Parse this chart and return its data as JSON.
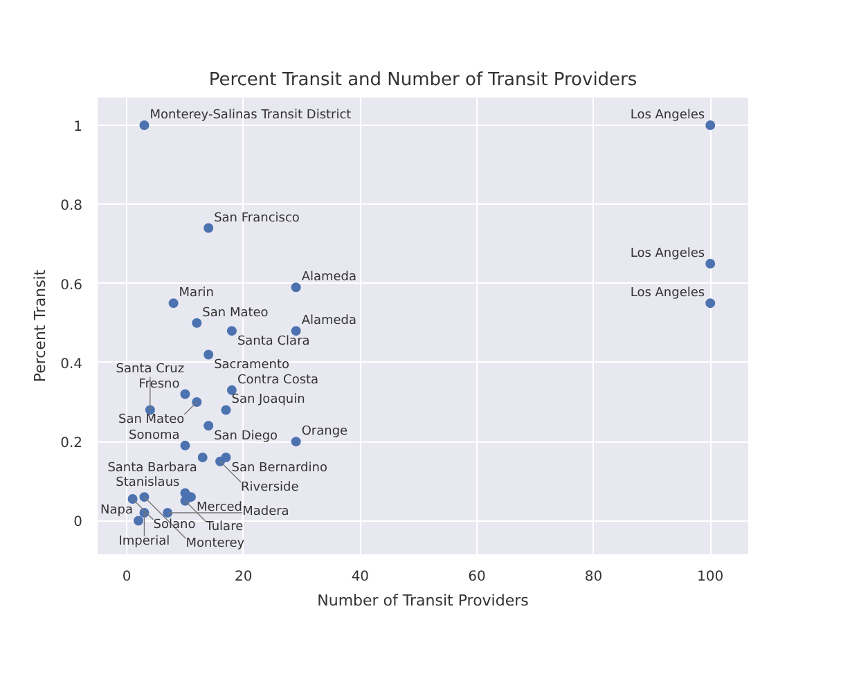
{
  "chart_data": {
    "type": "scatter",
    "title": "Percent Transit and Number of Transit Providers",
    "xlabel": "Number of Transit Providers",
    "ylabel": "Percent Transit",
    "x": [
      3,
      100,
      14,
      29,
      100,
      8,
      100,
      12,
      18,
      29,
      14,
      10,
      18,
      12,
      4,
      17,
      14,
      10,
      13,
      17,
      16,
      29,
      10,
      1,
      3,
      10,
      11,
      3,
      7,
      2
    ],
    "series": [
      {
        "color": "#4c72b0",
        "values": [
          1.0,
          1.0,
          0.74,
          0.59,
          0.65,
          0.55,
          0.55,
          0.5,
          0.48,
          0.48,
          0.42,
          0.32,
          0.33,
          0.3,
          0.28,
          0.28,
          0.24,
          0.19,
          0.16,
          0.16,
          0.15,
          0.2,
          0.07,
          0.055,
          0.06,
          0.05,
          0.06,
          0.02,
          0.02,
          0.0
        ]
      }
    ],
    "annotations": [
      {
        "text": "Monterey-Salinas Transit District",
        "x": 3,
        "y": 1.0
      },
      {
        "text": "Los Angeles",
        "x": 100,
        "y": 1.0
      },
      {
        "text": "San Francisco",
        "x": 14,
        "y": 0.74
      },
      {
        "text": "Alameda",
        "x": 29,
        "y": 0.59
      },
      {
        "text": "Los Angeles",
        "x": 100,
        "y": 0.65
      },
      {
        "text": "Marin",
        "x": 8,
        "y": 0.55
      },
      {
        "text": "Los Angeles",
        "x": 100,
        "y": 0.55
      },
      {
        "text": "San Mateo",
        "x": 12,
        "y": 0.5
      },
      {
        "text": "Santa Clara",
        "x": 18,
        "y": 0.48
      },
      {
        "text": "Alameda",
        "x": 29,
        "y": 0.48
      },
      {
        "text": "Sacramento",
        "x": 14,
        "y": 0.42
      },
      {
        "text": "Fresno",
        "x": 10,
        "y": 0.32
      },
      {
        "text": "Contra Costa",
        "x": 18,
        "y": 0.33
      },
      {
        "text": "San Mateo",
        "x": 12,
        "y": 0.3
      },
      {
        "text": "Santa Cruz",
        "x": 4,
        "y": 0.28
      },
      {
        "text": "San Joaquin",
        "x": 17,
        "y": 0.28
      },
      {
        "text": "San Diego",
        "x": 14,
        "y": 0.24
      },
      {
        "text": "Sonoma",
        "x": 10,
        "y": 0.19
      },
      {
        "text": "Santa Barbara",
        "x": 13,
        "y": 0.16
      },
      {
        "text": "San Bernardino",
        "x": 17,
        "y": 0.16
      },
      {
        "text": "Riverside",
        "x": 16,
        "y": 0.15
      },
      {
        "text": "Orange",
        "x": 29,
        "y": 0.2
      },
      {
        "text": "Stanislaus",
        "x": 10,
        "y": 0.07
      },
      {
        "text": "Solano",
        "x": 1,
        "y": 0.055
      },
      {
        "text": "Monterey",
        "x": 3,
        "y": 0.06
      },
      {
        "text": "Tulare",
        "x": 10,
        "y": 0.05
      },
      {
        "text": "Merced",
        "x": 11,
        "y": 0.06
      },
      {
        "text": "Imperial",
        "x": 3,
        "y": 0.02
      },
      {
        "text": "Madera",
        "x": 7,
        "y": 0.02
      },
      {
        "text": "Napa",
        "x": 2,
        "y": 0.0
      }
    ],
    "xlim": [
      -5,
      106.5
    ],
    "ylim": [
      -0.085,
      1.07
    ],
    "xticks": [
      0,
      20,
      40,
      60,
      80,
      100
    ],
    "yticks": [
      0,
      0.2,
      0.4,
      0.6,
      0.8,
      1
    ],
    "grid": true,
    "marker": "circle"
  }
}
